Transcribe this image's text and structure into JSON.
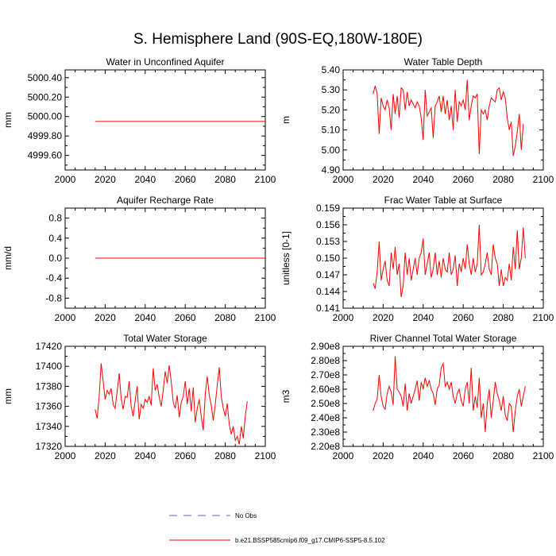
{
  "title": "S. Hemisphere Land (90S-EQ,180W-180E)",
  "line_color": "#ff0000",
  "obs_color": "#6a5acd",
  "legend": {
    "obs_label": "No Obs",
    "model_label": "b.e21.BSSP585cmip6.f09_g17.CMIP6-SSP5-8.5.102"
  },
  "chart_data": [
    {
      "type": "line",
      "title": "Water in Unconfined Aquifer",
      "ylabel": "mm",
      "xlabel": "",
      "xlim": [
        2000,
        2100
      ],
      "ylim": [
        4999.45,
        5000.48
      ],
      "xticks": [
        2000,
        2020,
        2040,
        2060,
        2080,
        2100
      ],
      "yticks": [
        4999.6,
        4999.8,
        5000.0,
        5000.2,
        5000.4
      ],
      "ytick_labels": [
        "4999.60",
        "4999.80",
        "5000.00",
        "5000.20",
        "5000.40"
      ],
      "series": [
        {
          "name": "b.e21.BSSP585cmip6.f09_g17.CMIP6-SSP5-8.5.102",
          "x": [
            2015,
            2100
          ],
          "values": [
            4999.95,
            4999.95
          ]
        }
      ]
    },
    {
      "type": "line",
      "title": "Water Table Depth",
      "ylabel": "m",
      "xlabel": "",
      "xlim": [
        2000,
        2100
      ],
      "ylim": [
        4.9,
        5.4
      ],
      "xticks": [
        2000,
        2020,
        2040,
        2060,
        2080,
        2100
      ],
      "yticks": [
        4.9,
        5.0,
        5.1,
        5.2,
        5.3,
        5.4
      ],
      "ytick_labels": [
        "4.90",
        "5.00",
        "5.10",
        "5.20",
        "5.30",
        "5.40"
      ],
      "series": [
        {
          "name": "b.e21.BSSP585cmip6.f09_g17.CMIP6-SSP5-8.5.102",
          "x_start": 2015,
          "values": [
            5.28,
            5.32,
            5.28,
            5.08,
            5.26,
            5.22,
            5.2,
            5.25,
            5.21,
            5.1,
            5.28,
            5.18,
            5.27,
            5.16,
            5.31,
            5.3,
            5.2,
            5.29,
            5.22,
            5.25,
            5.23,
            5.21,
            5.24,
            5.22,
            5.16,
            5.05,
            5.3,
            5.17,
            5.19,
            5.21,
            5.06,
            5.22,
            5.24,
            5.27,
            5.19,
            5.27,
            5.18,
            5.25,
            5.15,
            5.22,
            5.1,
            5.3,
            5.14,
            5.24,
            5.22,
            5.25,
            5.2,
            5.35,
            5.15,
            5.22,
            5.27,
            5.26,
            5.28,
            4.98,
            5.2,
            5.18,
            5.2,
            5.15,
            5.22,
            5.26,
            5.25,
            5.24,
            5.3,
            5.31,
            5.25,
            5.29,
            5.26,
            5.16,
            5.1,
            5.14,
            4.97,
            5.02,
            5.09,
            5.18,
            5.0,
            5.13
          ]
        }
      ]
    },
    {
      "type": "line",
      "title": "Aquifer Recharge Rate",
      "ylabel": "mm/d",
      "xlabel": "",
      "xlim": [
        2000,
        2100
      ],
      "ylim": [
        -1.0,
        1.0
      ],
      "xticks": [
        2000,
        2020,
        2040,
        2060,
        2080,
        2100
      ],
      "yticks": [
        -0.8,
        -0.4,
        0.0,
        0.4,
        0.8
      ],
      "ytick_labels": [
        "-0.8",
        "-0.4",
        "0.0",
        "0.4",
        "0.8"
      ],
      "series": [
        {
          "name": "b.e21.BSSP585cmip6.f09_g17.CMIP6-SSP5-8.5.102",
          "x": [
            2015,
            2100
          ],
          "values": [
            0.0,
            0.0
          ]
        }
      ]
    },
    {
      "type": "line",
      "title": "Frac Water Table at Surface",
      "ylabel": "unitless [0-1]",
      "xlabel": "",
      "xlim": [
        2000,
        2100
      ],
      "ylim": [
        0.141,
        0.159
      ],
      "xticks": [
        2000,
        2020,
        2040,
        2060,
        2080,
        2100
      ],
      "yticks": [
        0.141,
        0.144,
        0.147,
        0.15,
        0.153,
        0.156,
        0.159
      ],
      "ytick_labels": [
        "0.141",
        "0.144",
        "0.147",
        "0.150",
        "0.153",
        "0.156",
        "0.159"
      ],
      "series": [
        {
          "name": "b.e21.BSSP585cmip6.f09_g17.CMIP6-SSP5-8.5.102",
          "x_start": 2015,
          "values": [
            0.1455,
            0.1445,
            0.1475,
            0.153,
            0.146,
            0.148,
            0.1495,
            0.146,
            0.145,
            0.151,
            0.148,
            0.152,
            0.147,
            0.149,
            0.143,
            0.145,
            0.151,
            0.147,
            0.15,
            0.146,
            0.148,
            0.15,
            0.147,
            0.15,
            0.151,
            0.1535,
            0.147,
            0.149,
            0.151,
            0.1465,
            0.148,
            0.151,
            0.147,
            0.1495,
            0.1465,
            0.15,
            0.148,
            0.1475,
            0.151,
            0.147,
            0.148,
            0.1505,
            0.145,
            0.149,
            0.1475,
            0.15,
            0.148,
            0.1525,
            0.149,
            0.147,
            0.15,
            0.1475,
            0.149,
            0.156,
            0.147,
            0.1475,
            0.149,
            0.151,
            0.148,
            0.147,
            0.1525,
            0.15,
            0.149,
            0.145,
            0.148,
            0.145,
            0.1465,
            0.146,
            0.149,
            0.146,
            0.152,
            0.148,
            0.155,
            0.148,
            0.15,
            0.1555,
            0.15
          ]
        }
      ]
    },
    {
      "type": "line",
      "title": "Total Water Storage",
      "ylabel": "mm",
      "xlabel": "",
      "xlim": [
        2000,
        2100
      ],
      "ylim": [
        17320,
        17420
      ],
      "xticks": [
        2000,
        2020,
        2040,
        2060,
        2080,
        2100
      ],
      "yticks": [
        17320,
        17340,
        17360,
        17380,
        17400,
        17420
      ],
      "ytick_labels": [
        "17320",
        "17340",
        "17360",
        "17380",
        "17400",
        "17420"
      ],
      "series": [
        {
          "name": "b.e21.BSSP585cmip6.f09_g17.CMIP6-SSP5-8.5.102",
          "x_start": 2015,
          "values": [
            17357,
            17348,
            17370,
            17403,
            17385,
            17367,
            17376,
            17372,
            17378,
            17362,
            17358,
            17375,
            17393,
            17368,
            17357,
            17370,
            17369,
            17385,
            17360,
            17350,
            17366,
            17380,
            17347,
            17362,
            17358,
            17367,
            17364,
            17370,
            17361,
            17398,
            17376,
            17382,
            17369,
            17360,
            17376,
            17395,
            17383,
            17401,
            17385,
            17364,
            17358,
            17371,
            17349,
            17364,
            17370,
            17385,
            17362,
            17378,
            17355,
            17379,
            17344,
            17358,
            17367,
            17350,
            17336,
            17372,
            17390,
            17371,
            17361,
            17346,
            17362,
            17381,
            17399,
            17370,
            17358,
            17350,
            17363,
            17342,
            17332,
            17340,
            17326,
            17330,
            17322,
            17340,
            17328,
            17350,
            17365
          ]
        }
      ]
    },
    {
      "type": "line",
      "title": "River Channel Total Water Storage",
      "ylabel": "m3",
      "xlabel": "",
      "xlim": [
        2000,
        2100
      ],
      "ylim": [
        220000000.0,
        290000000.0
      ],
      "xticks": [
        2000,
        2020,
        2040,
        2060,
        2080,
        2100
      ],
      "yticks": [
        220000000.0,
        230000000.0,
        240000000.0,
        250000000.0,
        260000000.0,
        270000000.0,
        280000000.0,
        290000000.0
      ],
      "ytick_labels": [
        "2.20e8",
        "2.30e8",
        "2.40e8",
        "2.50e8",
        "2.60e8",
        "2.70e8",
        "2.80e8",
        "2.90e8"
      ],
      "series": [
        {
          "name": "b.e21.BSSP585cmip6.f09_g17.CMIP6-SSP5-8.5.102",
          "x_start": 2015,
          "values": [
            245000000.0,
            250000000.0,
            253000000.0,
            270000000.0,
            255000000.0,
            248000000.0,
            246000000.0,
            257000000.0,
            262000000.0,
            258000000.0,
            249000000.0,
            283000000.0,
            260000000.0,
            258000000.0,
            255000000.0,
            248000000.0,
            264000000.0,
            245000000.0,
            257000000.0,
            250000000.0,
            255000000.0,
            260000000.0,
            266000000.0,
            252000000.0,
            265000000.0,
            260000000.0,
            268000000.0,
            262000000.0,
            266000000.0,
            260000000.0,
            257000000.0,
            249000000.0,
            260000000.0,
            263000000.0,
            275000000.0,
            278000000.0,
            262000000.0,
            265000000.0,
            260000000.0,
            265000000.0,
            255000000.0,
            250000000.0,
            257000000.0,
            260000000.0,
            252000000.0,
            248000000.0,
            260000000.0,
            265000000.0,
            250000000.0,
            275000000.0,
            245000000.0,
            255000000.0,
            247000000.0,
            268000000.0,
            240000000.0,
            250000000.0,
            230000000.0,
            250000000.0,
            260000000.0,
            240000000.0,
            252000000.0,
            265000000.0,
            257000000.0,
            252000000.0,
            245000000.0,
            255000000.0,
            242000000.0,
            238000000.0,
            250000000.0,
            248000000.0,
            230000000.0,
            245000000.0,
            255000000.0,
            260000000.0,
            248000000.0,
            255000000.0,
            262000000.0
          ]
        }
      ]
    }
  ]
}
